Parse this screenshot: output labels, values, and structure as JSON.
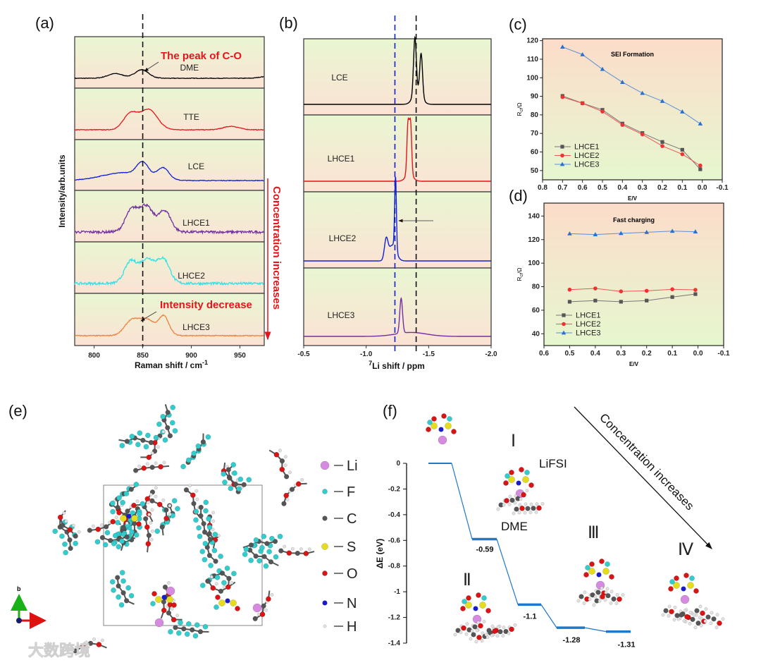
{
  "panel_labels": {
    "a": "(a)",
    "b": "(b)",
    "c": "(c)",
    "d": "(d)",
    "e": "(e)",
    "f": "(f)"
  },
  "chart_data": [
    {
      "id": "a",
      "type": "line",
      "xlabel": "Raman shift / cm",
      "xlabel_sup": "-1",
      "ylabel": "Intensity/arb.units",
      "xlim": [
        780,
        975
      ],
      "xticks": [
        800,
        850,
        900,
        950
      ],
      "reference_line": 850,
      "annotations": {
        "peak": "The peak of C-O",
        "decrease": "Intensity decrease"
      },
      "side_arrow": "Concentration increases",
      "series": [
        {
          "name": "DME",
          "color": "#000000",
          "label_x": 898,
          "noise": 0.02,
          "peaks": [
            [
              822,
              0.3,
              8
            ],
            [
              849,
              0.55,
              7
            ],
            [
              975,
              0.1,
              6
            ]
          ]
        },
        {
          "name": "TTE",
          "color": "#e8141b",
          "label_x": 900,
          "noise": 0.02,
          "peaks": [
            [
              837,
              1.0,
              7
            ],
            [
              856,
              1.3,
              9
            ],
            [
              941,
              0.22,
              8
            ]
          ]
        },
        {
          "name": "LCE",
          "color": "#1020d8",
          "label_x": 905,
          "noise": 0.02,
          "peaks": [
            [
              830,
              0.5,
              22
            ],
            [
              850,
              0.9,
              6
            ],
            [
              871,
              0.75,
              6
            ]
          ]
        },
        {
          "name": "LHCE1",
          "color": "#7030a0",
          "label_x": 905,
          "noise": 0.08,
          "peaks": [
            [
              838,
              1.2,
              6
            ],
            [
              853,
              1.3,
              7
            ],
            [
              873,
              1.2,
              6
            ],
            [
              855,
              0.4,
              14
            ]
          ]
        },
        {
          "name": "LHCE2",
          "color": "#33e0e8",
          "label_x": 900,
          "noise": 0.08,
          "peaks": [
            [
              837,
              1.2,
              6
            ],
            [
              855,
              1.2,
              8
            ],
            [
              872,
              1.3,
              6
            ],
            [
              855,
              0.4,
              14
            ]
          ]
        },
        {
          "name": "LHCE3",
          "color": "#f08040",
          "label_x": 905,
          "noise": 0.03,
          "peaks": [
            [
              838,
              0.8,
              7
            ],
            [
              854,
              0.75,
              8
            ],
            [
              872,
              1.1,
              5
            ],
            [
              855,
              0.3,
              14
            ]
          ]
        }
      ]
    },
    {
      "id": "b",
      "type": "line",
      "xlabel": "Li shift / ppm",
      "xlabel_sup": "7",
      "xlim": [
        -0.5,
        -2.0
      ],
      "xticks": [
        -0.5,
        -1.0,
        -1.5,
        -2.0
      ],
      "xtick_labels": [
        "-0.5",
        "-1.0",
        "-1.5",
        "-2.0"
      ],
      "reference_lines": [
        {
          "value": -1.23,
          "color": "#1020d8"
        },
        {
          "value": -1.4,
          "color": "#111111"
        }
      ],
      "series": [
        {
          "name": "LCE",
          "color": "#000000",
          "peaks": [
            [
              -1.39,
              1.0,
              0.011
            ],
            [
              -1.44,
              0.75,
              0.011
            ],
            [
              -1.41,
              0.22,
              0.035
            ]
          ]
        },
        {
          "name": "LHCE1",
          "color": "#e8141b",
          "peaks": [
            [
              -1.335,
              0.9,
              0.009
            ],
            [
              -1.355,
              0.9,
              0.009
            ],
            [
              -1.345,
              0.12,
              0.03
            ]
          ]
        },
        {
          "name": "LHCE2",
          "color": "#1020d8",
          "peaks": [
            [
              -1.235,
              1.3,
              0.007
            ],
            [
              -1.16,
              0.35,
              0.014
            ],
            [
              -1.21,
              0.28,
              0.03
            ]
          ]
        },
        {
          "name": "LHCE3",
          "color": "#7030a0",
          "peaks": [
            [
              -1.28,
              0.62,
              0.011
            ],
            [
              -1.36,
              0.07,
              0.12
            ]
          ]
        }
      ]
    },
    {
      "id": "c",
      "type": "line",
      "title": "SEI Formation",
      "xlabel": "E/V",
      "ylabel": "R",
      "ylabel_sub": "ct",
      "ylabel_unit": "/Ω",
      "xlim": [
        0.8,
        -0.1
      ],
      "ylim": [
        45,
        121
      ],
      "xticks": [
        0.8,
        0.7,
        0.6,
        0.5,
        0.4,
        0.3,
        0.2,
        0.1,
        0.0,
        -0.1
      ],
      "yticks": [
        50,
        60,
        70,
        80,
        90,
        100,
        110,
        120
      ],
      "x": [
        0.7,
        0.6,
        0.5,
        0.4,
        0.3,
        0.2,
        0.1,
        0.01
      ],
      "legend": "bottom-left",
      "series": [
        {
          "name": "LHCE1",
          "color": "#555555",
          "line": "#777777",
          "marker": "square",
          "values": [
            90.2,
            86.3,
            82.7,
            75.3,
            70.2,
            65.4,
            61.2,
            50.7
          ]
        },
        {
          "name": "LHCE2",
          "color": "#ee3333",
          "line": "#ee5555",
          "marker": "circle",
          "values": [
            89.6,
            86.2,
            81.8,
            74.6,
            69.5,
            63.2,
            58.8,
            52.7
          ]
        },
        {
          "name": "LHCE3",
          "color": "#2a6fd0",
          "line": "#5a90d8",
          "marker": "triangle",
          "values": [
            116.6,
            112.5,
            104.6,
            97.6,
            91.7,
            87.4,
            81.7,
            75.2
          ]
        }
      ]
    },
    {
      "id": "d",
      "type": "line",
      "title": "Fast charging",
      "xlabel": "E/V",
      "ylabel": "R",
      "ylabel_sub": "ct",
      "ylabel_unit": "/Ω",
      "xlim": [
        0.6,
        -0.1
      ],
      "ylim": [
        30,
        151
      ],
      "xticks": [
        0.6,
        0.5,
        0.4,
        0.3,
        0.2,
        0.1,
        0.0,
        -0.1
      ],
      "yticks": [
        40,
        60,
        80,
        100,
        120,
        140
      ],
      "x": [
        0.5,
        0.4,
        0.3,
        0.2,
        0.1,
        0.01
      ],
      "legend": "bottom-left",
      "series": [
        {
          "name": "LHCE1",
          "color": "#555555",
          "line": "#777777",
          "marker": "square",
          "values": [
            67.2,
            68.2,
            67.2,
            68.2,
            71.2,
            73.7
          ]
        },
        {
          "name": "LHCE2",
          "color": "#ee3333",
          "line": "#ee5555",
          "marker": "circle",
          "values": [
            77.5,
            78.5,
            76.0,
            76.5,
            77.8,
            77.3
          ]
        },
        {
          "name": "LHCE3",
          "color": "#2a6fd0",
          "line": "#5a90d8",
          "marker": "triangle",
          "values": [
            125.0,
            124.3,
            125.3,
            126.2,
            127.2,
            126.7
          ]
        }
      ]
    },
    {
      "id": "f",
      "type": "line",
      "subtype": "energy-levels",
      "ylabel": "ΔE (eV)",
      "ylim": [
        -1.4,
        0
      ],
      "yticks": [
        0,
        -0.2,
        -0.4,
        -0.6,
        -0.8,
        -1,
        -1.2,
        -1.4
      ],
      "ytick_labels": [
        "0",
        "-0.2",
        "-0.4",
        "-0.6",
        "-0.8",
        "-1",
        "-1.2",
        "-1.4"
      ],
      "levels": [
        0,
        -0.59,
        -1.1,
        -1.28,
        -1.31
      ],
      "value_labels": [
        "",
        "-0.59",
        "-1.1",
        "-1.28",
        "-1.31"
      ],
      "structure_labels": [
        "Ⅰ",
        "Ⅱ",
        "Ⅲ",
        "Ⅳ"
      ],
      "annotations": {
        "lifsi": "LiFSI",
        "dme": "DME",
        "arrow": "Concentration increases"
      },
      "color": "#1f78c8"
    }
  ],
  "panel_e": {
    "axis_label": "b",
    "legend": [
      {
        "symbol": "Li",
        "color": "#d68be0"
      },
      {
        "symbol": "F",
        "color": "#33cccc"
      },
      {
        "symbol": "C",
        "color": "#555555"
      },
      {
        "symbol": "S",
        "color": "#e6dc1e"
      },
      {
        "symbol": "O",
        "color": "#d81414"
      },
      {
        "symbol": "N",
        "color": "#1a1acc"
      },
      {
        "symbol": "H",
        "color": "#e2e2e2"
      }
    ]
  },
  "watermark": "大数跨境"
}
